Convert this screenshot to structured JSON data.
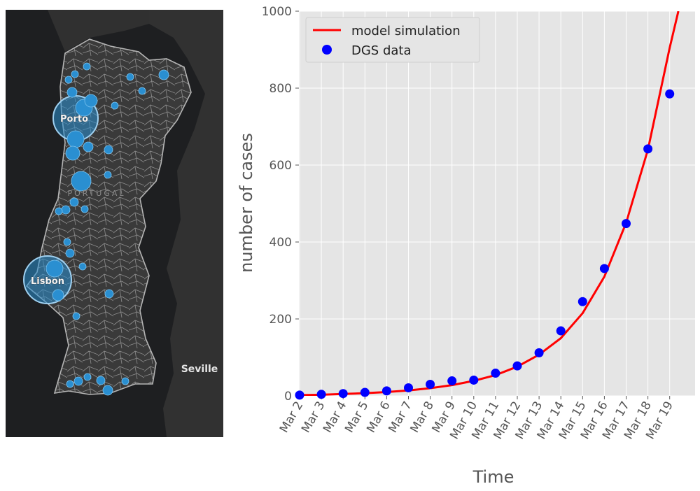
{
  "map": {
    "labels": {
      "porto": "Porto",
      "lisbon": "Lisbon",
      "portugal": "PORTUGAL",
      "seville": "Seville"
    },
    "colors": {
      "background": "#1e1f21",
      "land": "#353535",
      "bubble": "#2a8fd1"
    }
  },
  "chart_data": {
    "type": "line",
    "xlabel": "Time",
    "ylabel": "number of cases",
    "categories": [
      "Mar 2",
      "Mar 3",
      "Mar 4",
      "Mar 5",
      "Mar 6",
      "Mar 7",
      "Mar 8",
      "Mar 9",
      "Mar 10",
      "Mar 11",
      "Mar 12",
      "Mar 13",
      "Mar 14",
      "Mar 15",
      "Mar 16",
      "Mar 17",
      "Mar 18",
      "Mar 19"
    ],
    "ylim": [
      0,
      1000
    ],
    "yticks": [
      0,
      200,
      400,
      600,
      800,
      1000
    ],
    "grid": true,
    "legend_position": "top-left",
    "series": [
      {
        "name": "model simulation",
        "style": "line",
        "color": "#ff0000",
        "x": [
          "Mar 2",
          "Mar 3",
          "Mar 4",
          "Mar 5",
          "Mar 6",
          "Mar 7",
          "Mar 8",
          "Mar 9",
          "Mar 10",
          "Mar 11",
          "Mar 12",
          "Mar 13",
          "Mar 14",
          "Mar 15",
          "Mar 16",
          "Mar 17",
          "Mar 18",
          "Mar 19",
          "Mar 19.4"
        ],
        "values": [
          2,
          3,
          5,
          7,
          10,
          14,
          20,
          28,
          39,
          54,
          76,
          107,
          150,
          215,
          310,
          450,
          640,
          905,
          1000
        ]
      },
      {
        "name": "DGS data",
        "style": "scatter",
        "color": "#0000ff",
        "x": [
          "Mar 2",
          "Mar 3",
          "Mar 4",
          "Mar 5",
          "Mar 6",
          "Mar 7",
          "Mar 8",
          "Mar 9",
          "Mar 10",
          "Mar 11",
          "Mar 12",
          "Mar 13",
          "Mar 14",
          "Mar 15",
          "Mar 16",
          "Mar 17",
          "Mar 18",
          "Mar 19"
        ],
        "values": [
          2,
          4,
          6,
          9,
          13,
          21,
          30,
          39,
          41,
          59,
          78,
          112,
          169,
          245,
          331,
          448,
          642,
          785
        ]
      }
    ]
  }
}
